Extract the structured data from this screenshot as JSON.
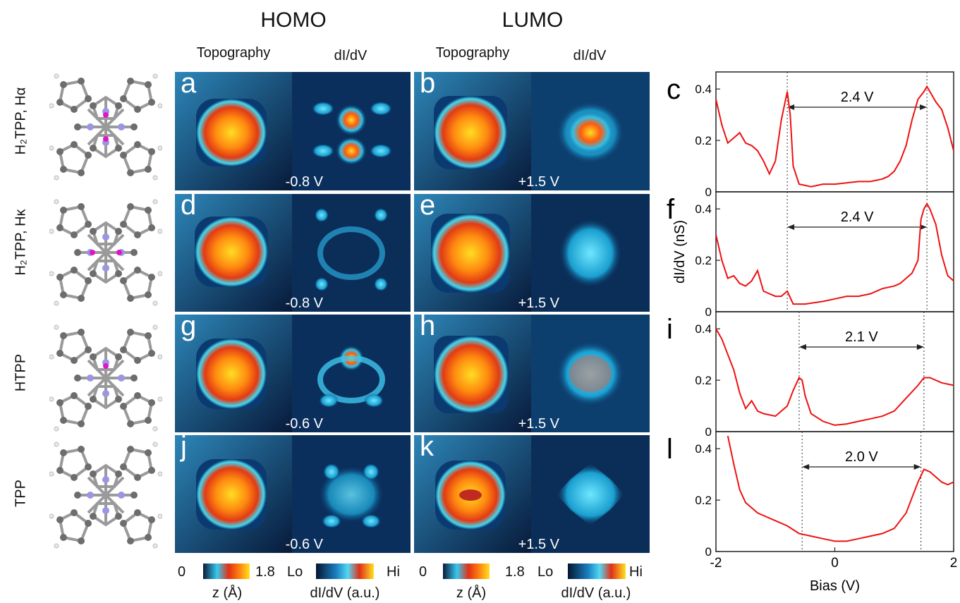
{
  "headers": {
    "homo": "HOMO",
    "lumo": "LUMO"
  },
  "subheaders": {
    "topography": "Topography",
    "didv": "dI/dV"
  },
  "rows": [
    {
      "label": "H₂TPP, Hα",
      "homo_letter": "a",
      "lumo_letter": "b",
      "homo_bias": "-0.8 V",
      "lumo_bias": "+1.5 V",
      "plot_letter": "c",
      "gap": "2.4 V"
    },
    {
      "label": "H₂TPP, Hκ",
      "homo_letter": "d",
      "lumo_letter": "e",
      "homo_bias": "-0.8 V",
      "lumo_bias": "+1.5 V",
      "plot_letter": "f",
      "gap": "2.4 V"
    },
    {
      "label": "HTPP",
      "homo_letter": "g",
      "lumo_letter": "h",
      "homo_bias": "-0.6 V",
      "lumo_bias": "+1.5 V",
      "plot_letter": "i",
      "gap": "2.1 V"
    },
    {
      "label": "TPP",
      "homo_letter": "j",
      "lumo_letter": "k",
      "homo_bias": "-0.6 V",
      "lumo_bias": "+1.5 V",
      "plot_letter": "l",
      "gap": "2.0 V"
    }
  ],
  "colorbars": {
    "topo_min": "0",
    "topo_max": "1.8",
    "topo_label": "z (Å)",
    "didv_min": "Lo",
    "didv_max": "Hi",
    "didv_label": "dI/dV (a.u.)"
  },
  "colors": {
    "curve": "#ee1111",
    "image_bg": "#0a2a55",
    "white_text": "#ffffff"
  },
  "chart_data": {
    "type": "line",
    "xlabel": "Bias (V)",
    "ylabel": "dI/dV (nS)",
    "xlim": [
      -2,
      2
    ],
    "ylim": [
      0,
      0.45
    ],
    "xticks": [
      "-2",
      "0",
      "2"
    ],
    "yticks": [
      "0",
      "0.2",
      "0.4"
    ],
    "panels": [
      {
        "letter": "c",
        "gap_label": "2.4 V",
        "markers": [
          -0.8,
          1.55
        ],
        "x": [
          -2.0,
          -1.9,
          -1.8,
          -1.7,
          -1.6,
          -1.5,
          -1.4,
          -1.3,
          -1.2,
          -1.1,
          -1.0,
          -0.9,
          -0.8,
          -0.75,
          -0.7,
          -0.6,
          -0.5,
          -0.4,
          -0.2,
          0.0,
          0.2,
          0.4,
          0.6,
          0.8,
          0.9,
          1.0,
          1.1,
          1.2,
          1.3,
          1.4,
          1.5,
          1.55,
          1.6,
          1.7,
          1.8,
          1.9,
          2.0
        ],
        "y": [
          0.36,
          0.26,
          0.19,
          0.21,
          0.23,
          0.19,
          0.18,
          0.16,
          0.12,
          0.07,
          0.12,
          0.28,
          0.39,
          0.3,
          0.1,
          0.03,
          0.025,
          0.02,
          0.03,
          0.03,
          0.035,
          0.04,
          0.04,
          0.05,
          0.06,
          0.08,
          0.12,
          0.18,
          0.28,
          0.36,
          0.39,
          0.41,
          0.39,
          0.35,
          0.32,
          0.25,
          0.16
        ]
      },
      {
        "letter": "f",
        "gap_label": "2.4 V",
        "markers": [
          -0.8,
          1.55
        ],
        "x": [
          -2.0,
          -1.9,
          -1.8,
          -1.7,
          -1.6,
          -1.5,
          -1.4,
          -1.3,
          -1.2,
          -1.1,
          -1.0,
          -0.9,
          -0.8,
          -0.7,
          -0.5,
          -0.2,
          0.0,
          0.2,
          0.4,
          0.6,
          0.8,
          1.0,
          1.1,
          1.2,
          1.3,
          1.4,
          1.45,
          1.5,
          1.55,
          1.6,
          1.7,
          1.8,
          1.9,
          2.0
        ],
        "y": [
          0.3,
          0.2,
          0.13,
          0.14,
          0.11,
          0.1,
          0.12,
          0.16,
          0.08,
          0.07,
          0.06,
          0.06,
          0.08,
          0.03,
          0.03,
          0.04,
          0.05,
          0.06,
          0.06,
          0.07,
          0.09,
          0.1,
          0.11,
          0.13,
          0.15,
          0.2,
          0.36,
          0.4,
          0.42,
          0.4,
          0.34,
          0.22,
          0.14,
          0.12
        ]
      },
      {
        "letter": "i",
        "gap_label": "2.1 V",
        "markers": [
          -0.6,
          1.5
        ],
        "x": [
          -2.0,
          -1.9,
          -1.8,
          -1.7,
          -1.6,
          -1.5,
          -1.4,
          -1.3,
          -1.2,
          -1.0,
          -0.8,
          -0.7,
          -0.6,
          -0.55,
          -0.5,
          -0.4,
          -0.2,
          0.0,
          0.2,
          0.4,
          0.6,
          0.8,
          1.0,
          1.2,
          1.4,
          1.5,
          1.6,
          1.8,
          2.0
        ],
        "y": [
          0.4,
          0.36,
          0.3,
          0.24,
          0.15,
          0.09,
          0.12,
          0.08,
          0.07,
          0.06,
          0.1,
          0.16,
          0.21,
          0.2,
          0.14,
          0.07,
          0.04,
          0.025,
          0.03,
          0.04,
          0.05,
          0.06,
          0.08,
          0.13,
          0.18,
          0.21,
          0.21,
          0.19,
          0.18
        ]
      },
      {
        "letter": "l",
        "gap_label": "2.0 V",
        "markers": [
          -0.55,
          1.45
        ],
        "x": [
          -1.8,
          -1.7,
          -1.6,
          -1.5,
          -1.4,
          -1.3,
          -1.2,
          -1.0,
          -0.8,
          -0.6,
          -0.4,
          -0.2,
          0.0,
          0.2,
          0.4,
          0.6,
          0.8,
          1.0,
          1.2,
          1.3,
          1.4,
          1.5,
          1.6,
          1.7,
          1.8,
          1.9,
          2.0
        ],
        "y": [
          0.45,
          0.34,
          0.24,
          0.19,
          0.17,
          0.15,
          0.14,
          0.12,
          0.1,
          0.07,
          0.06,
          0.05,
          0.04,
          0.04,
          0.05,
          0.06,
          0.07,
          0.09,
          0.15,
          0.21,
          0.27,
          0.32,
          0.31,
          0.29,
          0.27,
          0.26,
          0.27
        ]
      }
    ]
  }
}
